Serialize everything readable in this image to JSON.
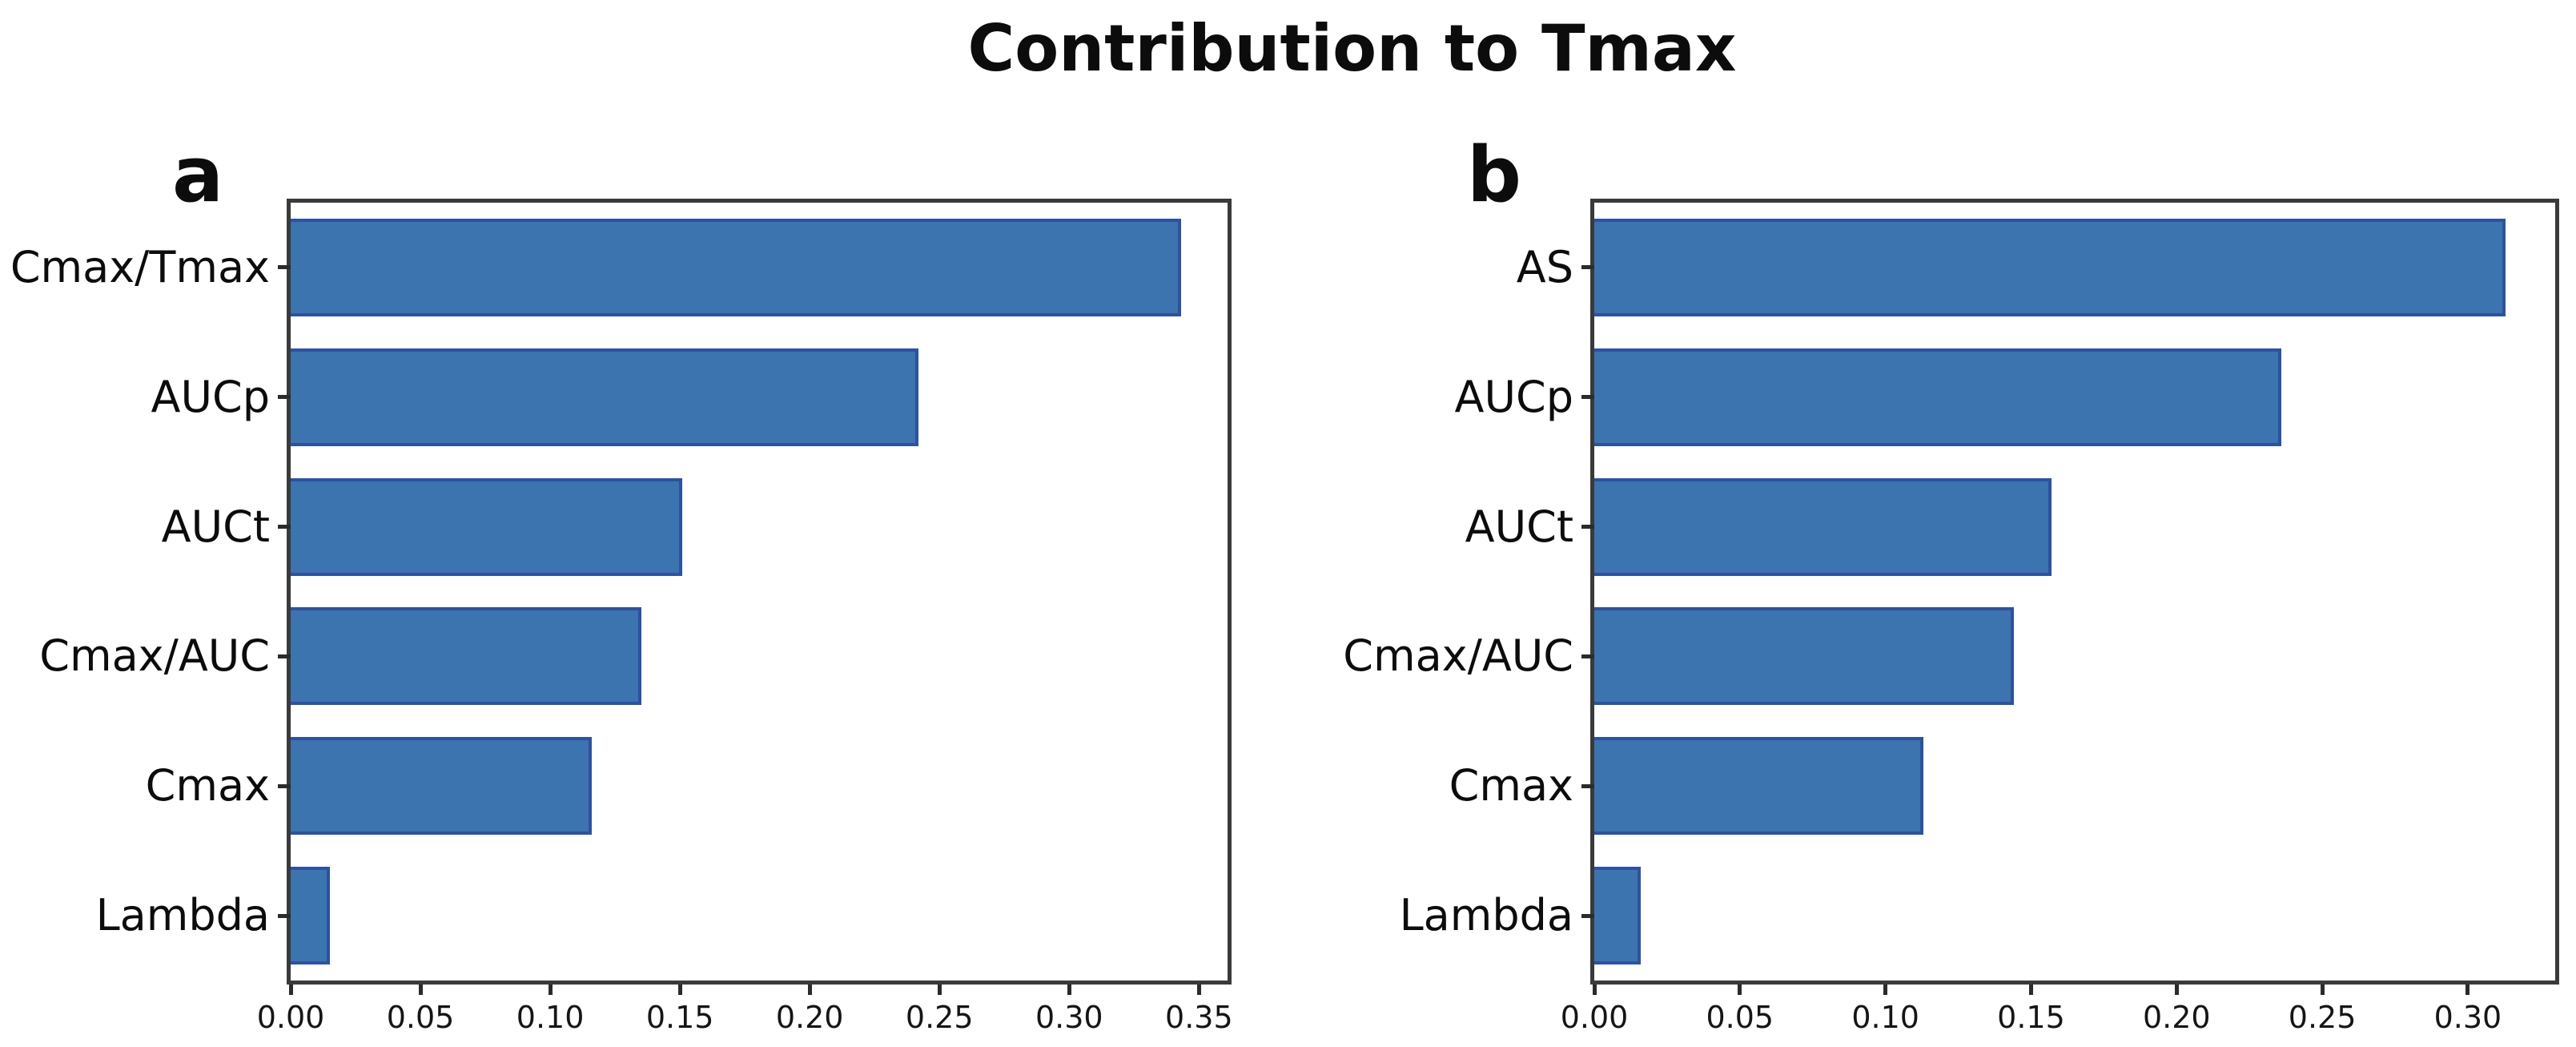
{
  "title": "Contribution to Tmax",
  "colors": {
    "bar_fill": "#3b74af",
    "bar_edge": "#2d51a3",
    "axis": "#3a3a3a",
    "text": "#0c0c0c"
  },
  "chart_data": [
    {
      "type": "bar",
      "orientation": "horizontal",
      "panel_label": "a",
      "title": "",
      "xlabel": "",
      "ylabel": "",
      "categories": [
        "Cmax/Tmax",
        "AUCp",
        "AUCt",
        "Cmax/AUC",
        "Cmax",
        "Lambda"
      ],
      "values": [
        0.343,
        0.242,
        0.151,
        0.135,
        0.116,
        0.015
      ],
      "xticks": [
        0.0,
        0.05,
        0.1,
        0.15,
        0.2,
        0.25,
        0.3,
        0.35
      ],
      "xtick_labels": [
        "0.00",
        "0.05",
        "0.10",
        "0.15",
        "0.20",
        "0.25",
        "0.30",
        "0.35"
      ],
      "xlim": [
        0,
        0.361
      ],
      "grid": false,
      "legend": null
    },
    {
      "type": "bar",
      "orientation": "horizontal",
      "panel_label": "b",
      "title": "",
      "xlabel": "",
      "ylabel": "",
      "categories": [
        "AS",
        "AUCp",
        "AUCt",
        "Cmax/AUC",
        "Cmax",
        "Lambda"
      ],
      "values": [
        0.313,
        0.236,
        0.157,
        0.144,
        0.113,
        0.016
      ],
      "xticks": [
        0.0,
        0.05,
        0.1,
        0.15,
        0.2,
        0.25,
        0.3
      ],
      "xtick_labels": [
        "0.00",
        "0.05",
        "0.10",
        "0.15",
        "0.20",
        "0.25",
        "0.30"
      ],
      "xlim": [
        0,
        0.33
      ],
      "grid": false,
      "legend": null
    }
  ]
}
